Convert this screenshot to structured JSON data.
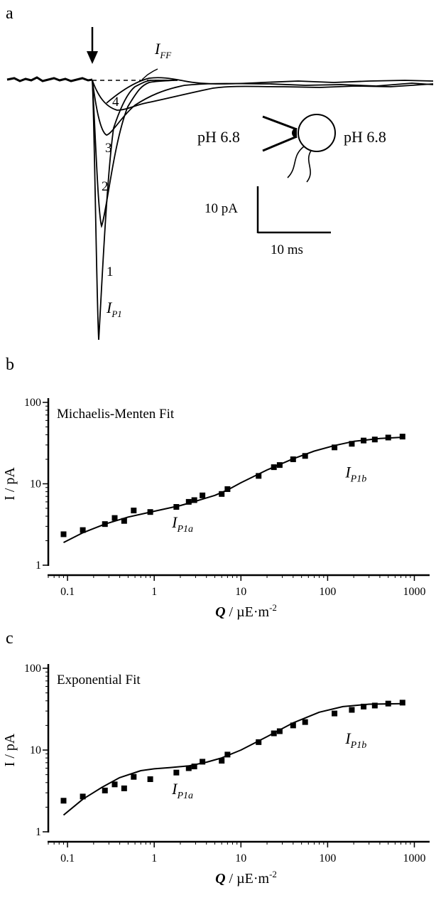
{
  "panels": {
    "a": "a",
    "b": "b",
    "c": "c"
  },
  "panel_a": {
    "trace_numbers": [
      "1",
      "2",
      "3",
      "4"
    ],
    "label_iff_main": "I",
    "label_iff_sub": "FF",
    "label_ip1_main": "I",
    "label_ip1_sub": "P1",
    "ph_left": "pH 6.8",
    "ph_right": "pH 6.8",
    "scale_current": "10 pA",
    "scale_time": "10 ms"
  },
  "chart_data": [
    {
      "type": "scatter",
      "panel": "b",
      "title": "Michaelis-Menten Fit",
      "xlabel_main": "Q",
      "xlabel_rest": " / µE·m",
      "xlabel_sup": "-2",
      "ylabel": "I / pA",
      "x_scale": "log",
      "y_scale": "log",
      "xlim": [
        0.06,
        1500
      ],
      "ylim": [
        1,
        100
      ],
      "x_ticks": [
        "0.1",
        "1",
        "10",
        "100",
        "1000"
      ],
      "y_ticks": [
        "1",
        "10",
        "100"
      ],
      "annotations": {
        "p1a_main": "I",
        "p1a_sub": "P1a",
        "p1b_main": "I",
        "p1b_sub": "P1b"
      },
      "x": [
        0.09,
        0.15,
        0.27,
        0.35,
        0.45,
        0.58,
        0.9,
        1.8,
        2.5,
        2.9,
        3.6,
        6.0,
        7.0,
        16,
        24,
        28,
        40,
        55,
        120,
        190,
        260,
        350,
        500,
        730
      ],
      "y": [
        2.4,
        2.7,
        3.2,
        3.8,
        3.5,
        4.7,
        4.5,
        5.2,
        6.0,
        6.3,
        7.2,
        7.5,
        8.6,
        12.5,
        16.0,
        17.0,
        20.0,
        22.0,
        28.0,
        31.0,
        34.0,
        35.0,
        37.0,
        38.0
      ],
      "fit": {
        "x": [
          0.09,
          0.15,
          0.27,
          0.5,
          1,
          2,
          3,
          5,
          7,
          10,
          20,
          40,
          70,
          120,
          200,
          400,
          750
        ],
        "y": [
          1.9,
          2.5,
          3.2,
          3.9,
          4.6,
          5.4,
          6.1,
          7.2,
          8.4,
          10.3,
          14.8,
          20.3,
          25.2,
          29.5,
          33.2,
          36.0,
          37.3
        ]
      }
    },
    {
      "type": "scatter",
      "panel": "c",
      "title": "Exponential Fit",
      "xlabel_main": "Q",
      "xlabel_rest": " / µE·m",
      "xlabel_sup": "-2",
      "ylabel": "I / pA",
      "x_scale": "log",
      "y_scale": "log",
      "xlim": [
        0.06,
        1500
      ],
      "ylim": [
        1,
        100
      ],
      "x_ticks": [
        "0.1",
        "1",
        "10",
        "100",
        "1000"
      ],
      "y_ticks": [
        "1",
        "10",
        "100"
      ],
      "annotations": {
        "p1a_main": "I",
        "p1a_sub": "P1a",
        "p1b_main": "I",
        "p1b_sub": "P1b"
      },
      "x": [
        0.09,
        0.15,
        0.27,
        0.35,
        0.45,
        0.58,
        0.9,
        1.8,
        2.5,
        2.9,
        3.6,
        6.0,
        7.0,
        16,
        24,
        28,
        40,
        55,
        120,
        190,
        260,
        350,
        500,
        730
      ],
      "y": [
        2.4,
        2.7,
        3.2,
        3.8,
        3.4,
        4.7,
        4.4,
        5.3,
        6.0,
        6.3,
        7.2,
        7.4,
        8.8,
        12.5,
        16.0,
        17.0,
        20.0,
        22.0,
        28.0,
        31.0,
        34.0,
        35.0,
        37.0,
        38.0
      ],
      "fit": {
        "x": [
          0.09,
          0.15,
          0.25,
          0.4,
          0.7,
          1.0,
          1.5,
          2.5,
          4,
          6,
          10,
          20,
          40,
          80,
          150,
          300,
          750
        ],
        "y": [
          1.6,
          2.5,
          3.5,
          4.6,
          5.6,
          5.9,
          6.1,
          6.4,
          7.1,
          8.0,
          10.0,
          14.6,
          21.5,
          29.0,
          34.0,
          36.4,
          37.0
        ]
      }
    }
  ]
}
